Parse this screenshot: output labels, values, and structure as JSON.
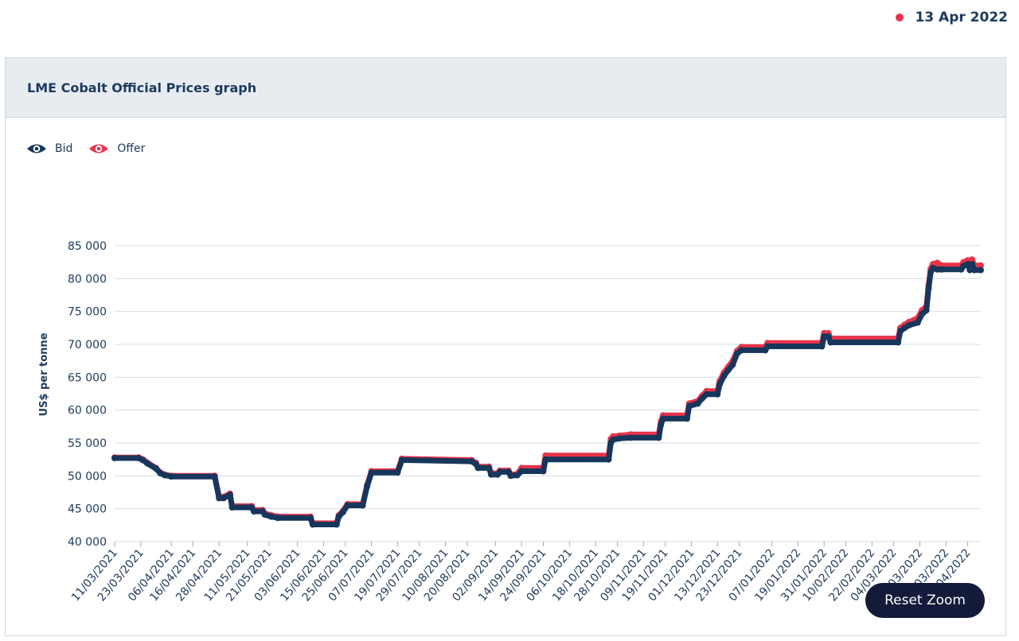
{
  "header": {
    "date": "13 Apr 2022"
  },
  "card": {
    "title": "LME Cobalt Official Prices graph"
  },
  "legend": [
    {
      "label": "Bid",
      "color": "#16365c",
      "icon": "eye-icon"
    },
    {
      "label": "Offer",
      "color": "#e8334a",
      "icon": "eye-icon"
    }
  ],
  "reset_zoom_label": "Reset Zoom",
  "chart_data": {
    "type": "line",
    "ylabel": "US$ per tonne",
    "xlabel": "",
    "ylim": [
      40000,
      85000
    ],
    "yticks": [
      "85 000",
      "80 000",
      "75 000",
      "70 000",
      "65 000",
      "60 000",
      "55 000",
      "50 000",
      "45 000",
      "40 000"
    ],
    "xticks": [
      "11/03/2021",
      "23/03/2021",
      "06/04/2021",
      "16/04/2021",
      "28/04/2021",
      "11/05/2021",
      "21/05/2021",
      "03/06/2021",
      "15/06/2021",
      "25/06/2021",
      "07/07/2021",
      "19/07/2021",
      "29/07/2021",
      "10/08/2021",
      "20/08/2021",
      "02/09/2021",
      "14/09/2021",
      "24/09/2021",
      "06/10/2021",
      "18/10/2021",
      "28/10/2021",
      "09/11/2021",
      "19/11/2021",
      "01/12/2021",
      "13/12/2021",
      "23/12/2021",
      "07/01/2022",
      "19/01/2022",
      "31/01/2022",
      "10/02/2022",
      "22/02/2022",
      "04/03/2022",
      "16/03/2022",
      "28/03/2022",
      "07/04/2022"
    ],
    "x_range": [
      "11/03/2021",
      "13/04/2022"
    ],
    "grid": true,
    "legend_position": "top-left",
    "series": [
      {
        "name": "Offer",
        "color": "#e8334a",
        "points": [
          [
            "11/03/2021",
            52800
          ],
          [
            "22/03/2021",
            52800
          ],
          [
            "24/03/2021",
            52500
          ],
          [
            "26/03/2021",
            52000
          ],
          [
            "30/03/2021",
            51200
          ],
          [
            "01/04/2021",
            50500
          ],
          [
            "03/04/2021",
            50200
          ],
          [
            "06/04/2021",
            50000
          ],
          [
            "26/04/2021",
            50000
          ],
          [
            "28/04/2021",
            46800
          ],
          [
            "30/04/2021",
            46800
          ],
          [
            "03/05/2021",
            47300
          ],
          [
            "04/05/2021",
            45400
          ],
          [
            "13/05/2021",
            45400
          ],
          [
            "14/05/2021",
            44800
          ],
          [
            "18/05/2021",
            44800
          ],
          [
            "19/05/2021",
            44300
          ],
          [
            "22/05/2021",
            44000
          ],
          [
            "25/05/2021",
            43800
          ],
          [
            "09/06/2021",
            43800
          ],
          [
            "10/06/2021",
            42800
          ],
          [
            "21/06/2021",
            42800
          ],
          [
            "22/06/2021",
            44000
          ],
          [
            "24/06/2021",
            44700
          ],
          [
            "26/06/2021",
            45700
          ],
          [
            "03/07/2021",
            45700
          ],
          [
            "05/07/2021",
            48600
          ],
          [
            "07/07/2021",
            50700
          ],
          [
            "19/07/2021",
            50700
          ],
          [
            "21/07/2021",
            52600
          ],
          [
            "22/08/2021",
            52400
          ],
          [
            "24/08/2021",
            52000
          ],
          [
            "25/08/2021",
            51400
          ],
          [
            "30/08/2021",
            51400
          ],
          [
            "31/08/2021",
            50400
          ],
          [
            "03/09/2021",
            50400
          ],
          [
            "04/09/2021",
            50800
          ],
          [
            "08/09/2021",
            50800
          ],
          [
            "09/09/2021",
            50200
          ],
          [
            "12/09/2021",
            50300
          ],
          [
            "14/09/2021",
            51200
          ],
          [
            "24/09/2021",
            51200
          ],
          [
            "25/09/2021",
            53100
          ],
          [
            "24/10/2021",
            53100
          ],
          [
            "25/10/2021",
            55600
          ],
          [
            "26/10/2021",
            56000
          ],
          [
            "29/10/2021",
            56100
          ],
          [
            "03/11/2021",
            56300
          ],
          [
            "16/11/2021",
            56300
          ],
          [
            "17/11/2021",
            58300
          ],
          [
            "18/11/2021",
            59200
          ],
          [
            "29/11/2021",
            59200
          ],
          [
            "30/11/2021",
            61000
          ],
          [
            "04/12/2021",
            61400
          ],
          [
            "06/12/2021",
            62200
          ],
          [
            "08/12/2021",
            62900
          ],
          [
            "13/12/2021",
            62900
          ],
          [
            "14/12/2021",
            64400
          ],
          [
            "16/12/2021",
            65700
          ],
          [
            "18/12/2021",
            66600
          ],
          [
            "20/12/2021",
            67500
          ],
          [
            "22/12/2021",
            69000
          ],
          [
            "24/12/2021",
            69600
          ],
          [
            "04/01/2022",
            69600
          ],
          [
            "05/01/2022",
            70200
          ],
          [
            "30/01/2022",
            70200
          ],
          [
            "31/01/2022",
            71700
          ],
          [
            "02/02/2022",
            71700
          ],
          [
            "03/02/2022",
            70900
          ],
          [
            "06/03/2022",
            70900
          ],
          [
            "07/03/2022",
            72500
          ],
          [
            "09/03/2022",
            73000
          ],
          [
            "11/03/2022",
            73400
          ],
          [
            "15/03/2022",
            74000
          ],
          [
            "17/03/2022",
            75200
          ],
          [
            "19/03/2022",
            75800
          ],
          [
            "20/03/2022",
            79000
          ],
          [
            "21/03/2022",
            81500
          ],
          [
            "22/03/2022",
            82200
          ],
          [
            "24/03/2022",
            82400
          ],
          [
            "26/03/2022",
            82000
          ],
          [
            "04/04/2022",
            82000
          ],
          [
            "05/04/2022",
            82500
          ],
          [
            "07/04/2022",
            82800
          ],
          [
            "08/04/2022",
            81900
          ],
          [
            "09/04/2022",
            82900
          ],
          [
            "10/04/2022",
            82000
          ],
          [
            "13/04/2022",
            82000
          ]
        ]
      },
      {
        "name": "Bid",
        "color": "#16365c",
        "points": [
          [
            "11/03/2021",
            52700
          ],
          [
            "22/03/2021",
            52700
          ],
          [
            "24/03/2021",
            52400
          ],
          [
            "26/03/2021",
            51900
          ],
          [
            "30/03/2021",
            51100
          ],
          [
            "01/04/2021",
            50400
          ],
          [
            "03/04/2021",
            50100
          ],
          [
            "06/04/2021",
            49900
          ],
          [
            "26/04/2021",
            49900
          ],
          [
            "28/04/2021",
            46600
          ],
          [
            "30/04/2021",
            46600
          ],
          [
            "03/05/2021",
            47100
          ],
          [
            "04/05/2021",
            45200
          ],
          [
            "13/05/2021",
            45200
          ],
          [
            "14/05/2021",
            44600
          ],
          [
            "18/05/2021",
            44600
          ],
          [
            "19/05/2021",
            44100
          ],
          [
            "22/05/2021",
            43800
          ],
          [
            "25/05/2021",
            43600
          ],
          [
            "09/06/2021",
            43600
          ],
          [
            "10/06/2021",
            42600
          ],
          [
            "21/06/2021",
            42600
          ],
          [
            "22/06/2021",
            43800
          ],
          [
            "24/06/2021",
            44500
          ],
          [
            "26/06/2021",
            45500
          ],
          [
            "03/07/2021",
            45500
          ],
          [
            "05/07/2021",
            48400
          ],
          [
            "07/07/2021",
            50500
          ],
          [
            "19/07/2021",
            50500
          ],
          [
            "21/07/2021",
            52400
          ],
          [
            "22/08/2021",
            52200
          ],
          [
            "24/08/2021",
            51800
          ],
          [
            "25/08/2021",
            51200
          ],
          [
            "30/08/2021",
            51200
          ],
          [
            "31/08/2021",
            50200
          ],
          [
            "03/09/2021",
            50200
          ],
          [
            "04/09/2021",
            50600
          ],
          [
            "08/09/2021",
            50600
          ],
          [
            "09/09/2021",
            50000
          ],
          [
            "12/09/2021",
            50100
          ],
          [
            "14/09/2021",
            50700
          ],
          [
            "24/09/2021",
            50700
          ],
          [
            "25/09/2021",
            52500
          ],
          [
            "24/10/2021",
            52500
          ],
          [
            "25/10/2021",
            55000
          ],
          [
            "26/10/2021",
            55500
          ],
          [
            "29/10/2021",
            55700
          ],
          [
            "03/11/2021",
            55800
          ],
          [
            "16/11/2021",
            55800
          ],
          [
            "17/11/2021",
            57800
          ],
          [
            "18/11/2021",
            58700
          ],
          [
            "29/11/2021",
            58700
          ],
          [
            "30/11/2021",
            60600
          ],
          [
            "04/12/2021",
            61000
          ],
          [
            "06/12/2021",
            61800
          ],
          [
            "08/12/2021",
            62400
          ],
          [
            "13/12/2021",
            62400
          ],
          [
            "14/12/2021",
            63900
          ],
          [
            "16/12/2021",
            65200
          ],
          [
            "18/12/2021",
            66100
          ],
          [
            "20/12/2021",
            66900
          ],
          [
            "22/12/2021",
            68600
          ],
          [
            "24/12/2021",
            69100
          ],
          [
            "04/01/2022",
            69100
          ],
          [
            "05/01/2022",
            69700
          ],
          [
            "30/01/2022",
            69700
          ],
          [
            "31/01/2022",
            71200
          ],
          [
            "02/02/2022",
            71200
          ],
          [
            "03/02/2022",
            70300
          ],
          [
            "06/03/2022",
            70300
          ],
          [
            "07/03/2022",
            72000
          ],
          [
            "09/03/2022",
            72500
          ],
          [
            "11/03/2022",
            72900
          ],
          [
            "15/03/2022",
            73300
          ],
          [
            "17/03/2022",
            74600
          ],
          [
            "19/03/2022",
            75200
          ],
          [
            "20/03/2022",
            78500
          ],
          [
            "21/03/2022",
            81000
          ],
          [
            "22/03/2022",
            81600
          ],
          [
            "24/03/2022",
            81400
          ],
          [
            "26/03/2022",
            81400
          ],
          [
            "04/04/2022",
            81400
          ],
          [
            "05/04/2022",
            81900
          ],
          [
            "07/04/2022",
            82200
          ],
          [
            "08/04/2022",
            81300
          ],
          [
            "09/04/2022",
            82200
          ],
          [
            "10/04/2022",
            81300
          ],
          [
            "13/04/2022",
            81300
          ]
        ]
      }
    ]
  }
}
